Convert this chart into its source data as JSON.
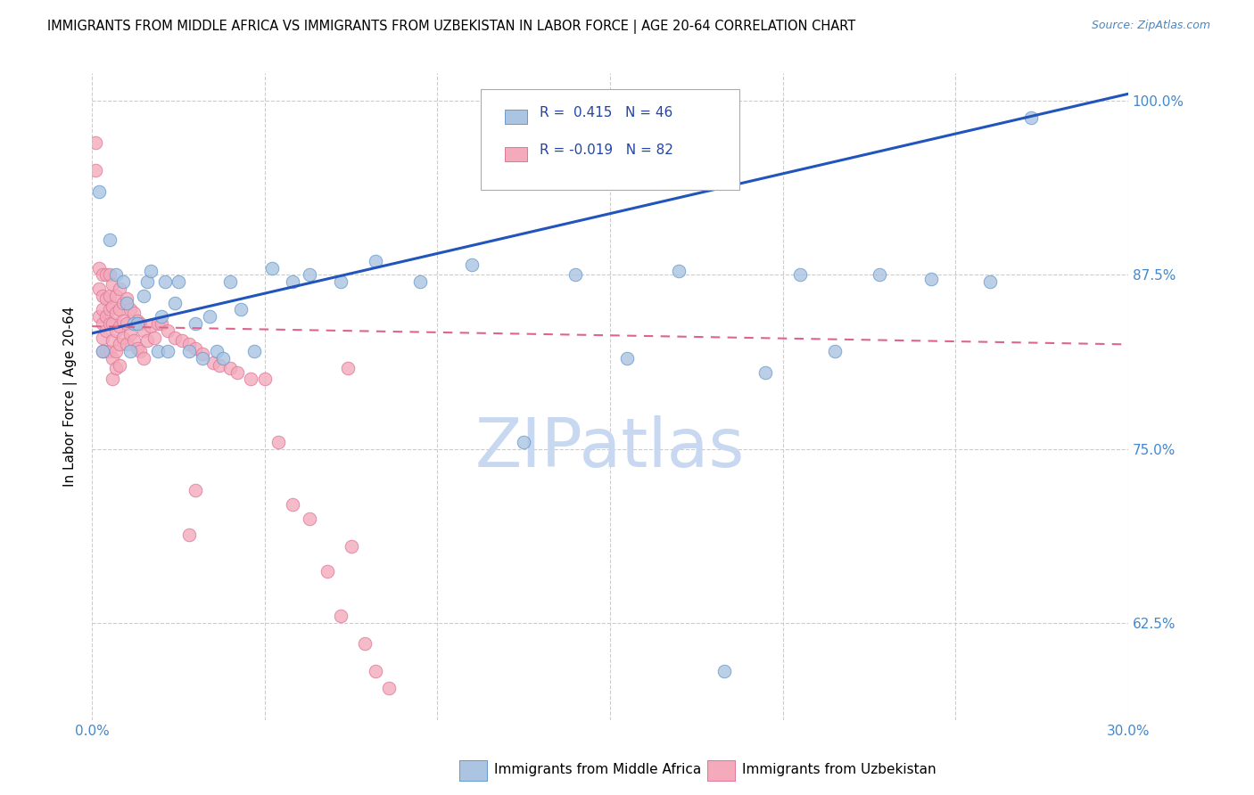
{
  "title": "IMMIGRANTS FROM MIDDLE AFRICA VS IMMIGRANTS FROM UZBEKISTAN IN LABOR FORCE | AGE 20-64 CORRELATION CHART",
  "source": "Source: ZipAtlas.com",
  "ylabel": "In Labor Force | Age 20-64",
  "xlim": [
    0.0,
    0.3
  ],
  "ylim": [
    0.555,
    1.02
  ],
  "xticks": [
    0.0,
    0.05,
    0.1,
    0.15,
    0.2,
    0.25,
    0.3
  ],
  "xtick_labels": [
    "0.0%",
    "",
    "",
    "",
    "",
    "",
    "30.0%"
  ],
  "ytick_labels": [
    "62.5%",
    "75.0%",
    "87.5%",
    "100.0%"
  ],
  "yticks": [
    0.625,
    0.75,
    0.875,
    1.0
  ],
  "r_blue": 0.415,
  "n_blue": 46,
  "r_pink": -0.019,
  "n_pink": 82,
  "blue_color": "#aac4e2",
  "pink_color": "#f4aabb",
  "blue_edge": "#6699cc",
  "pink_edge": "#dd7799",
  "trend_blue": "#2255bb",
  "trend_pink": "#dd6688",
  "watermark": "ZIPatlas",
  "watermark_color": "#c8d8f0",
  "blue_scatter_x": [
    0.002,
    0.003,
    0.005,
    0.007,
    0.009,
    0.01,
    0.011,
    0.012,
    0.013,
    0.015,
    0.016,
    0.017,
    0.019,
    0.02,
    0.021,
    0.022,
    0.024,
    0.025,
    0.028,
    0.03,
    0.032,
    0.034,
    0.036,
    0.038,
    0.04,
    0.043,
    0.047,
    0.052,
    0.058,
    0.063,
    0.072,
    0.082,
    0.095,
    0.11,
    0.125,
    0.14,
    0.155,
    0.17,
    0.183,
    0.195,
    0.205,
    0.215,
    0.228,
    0.243,
    0.26,
    0.272
  ],
  "blue_scatter_y": [
    0.935,
    0.82,
    0.9,
    0.875,
    0.87,
    0.855,
    0.82,
    0.84,
    0.84,
    0.86,
    0.87,
    0.878,
    0.82,
    0.845,
    0.87,
    0.82,
    0.855,
    0.87,
    0.82,
    0.84,
    0.815,
    0.845,
    0.82,
    0.815,
    0.87,
    0.85,
    0.82,
    0.88,
    0.87,
    0.875,
    0.87,
    0.885,
    0.87,
    0.882,
    0.755,
    0.875,
    0.815,
    0.878,
    0.59,
    0.805,
    0.875,
    0.82,
    0.875,
    0.872,
    0.87,
    0.988
  ],
  "pink_scatter_x": [
    0.001,
    0.001,
    0.002,
    0.002,
    0.002,
    0.003,
    0.003,
    0.003,
    0.003,
    0.003,
    0.003,
    0.004,
    0.004,
    0.004,
    0.004,
    0.004,
    0.005,
    0.005,
    0.005,
    0.005,
    0.005,
    0.006,
    0.006,
    0.006,
    0.006,
    0.006,
    0.006,
    0.007,
    0.007,
    0.007,
    0.007,
    0.007,
    0.008,
    0.008,
    0.008,
    0.008,
    0.008,
    0.009,
    0.009,
    0.009,
    0.01,
    0.01,
    0.01,
    0.011,
    0.011,
    0.012,
    0.012,
    0.013,
    0.013,
    0.014,
    0.014,
    0.015,
    0.015,
    0.016,
    0.017,
    0.018,
    0.019,
    0.02,
    0.022,
    0.024,
    0.026,
    0.028,
    0.03,
    0.032,
    0.035,
    0.037,
    0.04,
    0.042,
    0.046,
    0.05,
    0.054,
    0.058,
    0.063,
    0.068,
    0.072,
    0.075,
    0.079,
    0.082,
    0.086,
    0.074,
    0.03,
    0.028
  ],
  "pink_scatter_y": [
    0.97,
    0.95,
    0.88,
    0.865,
    0.845,
    0.875,
    0.86,
    0.85,
    0.84,
    0.83,
    0.82,
    0.875,
    0.858,
    0.845,
    0.835,
    0.82,
    0.875,
    0.86,
    0.85,
    0.84,
    0.82,
    0.868,
    0.852,
    0.84,
    0.828,
    0.815,
    0.8,
    0.86,
    0.848,
    0.835,
    0.82,
    0.808,
    0.865,
    0.85,
    0.838,
    0.825,
    0.81,
    0.855,
    0.842,
    0.83,
    0.858,
    0.84,
    0.825,
    0.85,
    0.832,
    0.848,
    0.828,
    0.842,
    0.822,
    0.84,
    0.82,
    0.835,
    0.815,
    0.828,
    0.838,
    0.83,
    0.84,
    0.84,
    0.835,
    0.83,
    0.828,
    0.825,
    0.822,
    0.818,
    0.812,
    0.81,
    0.808,
    0.805,
    0.8,
    0.8,
    0.755,
    0.71,
    0.7,
    0.662,
    0.63,
    0.68,
    0.61,
    0.59,
    0.578,
    0.808,
    0.72,
    0.688
  ]
}
